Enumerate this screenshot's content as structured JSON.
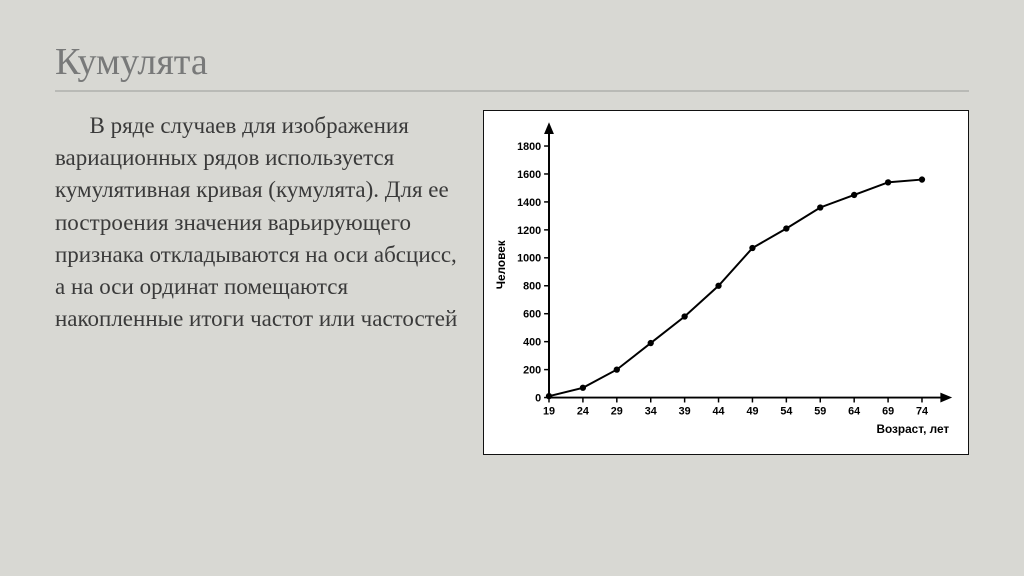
{
  "title": "Кумулята",
  "paragraph": "В ряде случаев для изображения вариационных рядов используется кумулятивная кривая (кумулята). Для ее построения значения варьирующего признака откладываются на оси абсцисс, а на оси ординат помещаются накопленные итоги частот или частостей",
  "chart": {
    "type": "line",
    "x_values": [
      19,
      24,
      29,
      34,
      39,
      44,
      49,
      54,
      59,
      64,
      69,
      74
    ],
    "y_values": [
      10,
      70,
      200,
      390,
      580,
      800,
      1070,
      1210,
      1360,
      1450,
      1540,
      1560
    ],
    "xlim": [
      19,
      77
    ],
    "ylim": [
      0,
      1900
    ],
    "xticks": [
      19,
      24,
      29,
      34,
      39,
      44,
      49,
      54,
      59,
      64,
      69,
      74
    ],
    "yticks": [
      0,
      200,
      400,
      600,
      800,
      1000,
      1200,
      1400,
      1600,
      1800
    ],
    "xlabel": "Возраст, лет",
    "ylabel": "Человек",
    "line_color": "#000000",
    "marker_color": "#000000",
    "marker_radius": 3.2,
    "line_width": 2,
    "axis_color": "#000000",
    "axis_width": 2,
    "tick_font_size": 11,
    "label_font_size": 12,
    "background_color": "#ffffff"
  }
}
